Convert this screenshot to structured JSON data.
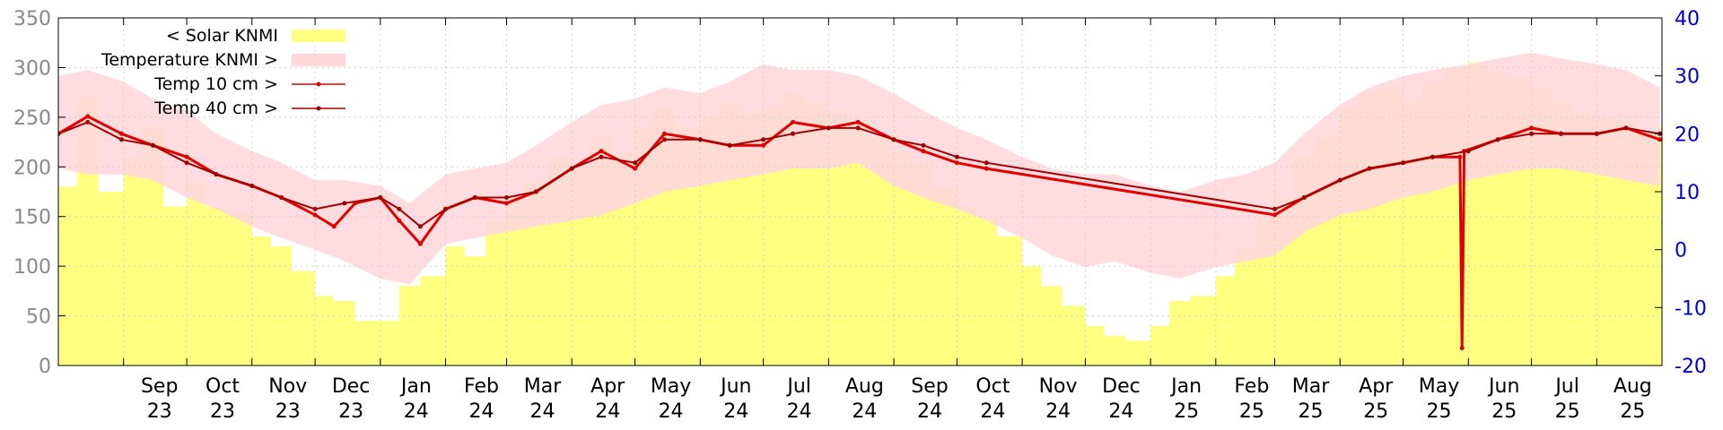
{
  "chart_data": {
    "type": "line",
    "title": "",
    "x_range": [
      "2023-08-01",
      "2025-09-01"
    ],
    "x_ticks": [
      {
        "date": "2023-09-01",
        "month": "Sep",
        "year": "23"
      },
      {
        "date": "2023-10-01",
        "month": "Oct",
        "year": "23"
      },
      {
        "date": "2023-11-01",
        "month": "Nov",
        "year": "23"
      },
      {
        "date": "2023-12-01",
        "month": "Dec",
        "year": "23"
      },
      {
        "date": "2024-01-01",
        "month": "Jan",
        "year": "24"
      },
      {
        "date": "2024-02-01",
        "month": "Feb",
        "year": "24"
      },
      {
        "date": "2024-03-01",
        "month": "Mar",
        "year": "24"
      },
      {
        "date": "2024-04-01",
        "month": "Apr",
        "year": "24"
      },
      {
        "date": "2024-05-01",
        "month": "May",
        "year": "24"
      },
      {
        "date": "2024-06-01",
        "month": "Jun",
        "year": "24"
      },
      {
        "date": "2024-07-01",
        "month": "Jul",
        "year": "24"
      },
      {
        "date": "2024-08-01",
        "month": "Aug",
        "year": "24"
      },
      {
        "date": "2024-09-01",
        "month": "Sep",
        "year": "24"
      },
      {
        "date": "2024-10-01",
        "month": "Oct",
        "year": "24"
      },
      {
        "date": "2024-11-01",
        "month": "Nov",
        "year": "24"
      },
      {
        "date": "2024-12-01",
        "month": "Dec",
        "year": "24"
      },
      {
        "date": "2025-01-01",
        "month": "Jan",
        "year": "25"
      },
      {
        "date": "2025-02-01",
        "month": "Feb",
        "year": "25"
      },
      {
        "date": "2025-03-01",
        "month": "Mar",
        "year": "25"
      },
      {
        "date": "2025-04-01",
        "month": "Apr",
        "year": "25"
      },
      {
        "date": "2025-05-01",
        "month": "May",
        "year": "25"
      },
      {
        "date": "2025-06-01",
        "month": "Jun",
        "year": "25"
      },
      {
        "date": "2025-07-01",
        "month": "Jul",
        "year": "25"
      },
      {
        "date": "2025-08-01",
        "month": "Aug",
        "year": "25"
      }
    ],
    "y_left": {
      "min": 0,
      "max": 350,
      "ticks": [
        0,
        50,
        100,
        150,
        200,
        250,
        300,
        350
      ]
    },
    "y_right": {
      "min": -20,
      "max": 40,
      "ticks": [
        -20,
        -10,
        0,
        10,
        20,
        30,
        40
      ]
    },
    "grid": true,
    "legend_position": "top-left",
    "series": [
      {
        "name": "< Solar KNMI",
        "axis": "left",
        "style": "area",
        "color": "#ffff80",
        "points": [
          [
            "2023-08-01",
            180
          ],
          [
            "2023-08-10",
            270
          ],
          [
            "2023-08-20",
            175
          ],
          [
            "2023-09-01",
            210
          ],
          [
            "2023-09-10",
            240
          ],
          [
            "2023-09-20",
            160
          ],
          [
            "2023-10-01",
            185
          ],
          [
            "2023-10-10",
            160
          ],
          [
            "2023-10-20",
            155
          ],
          [
            "2023-11-01",
            130
          ],
          [
            "2023-11-10",
            120
          ],
          [
            "2023-11-20",
            95
          ],
          [
            "2023-12-01",
            70
          ],
          [
            "2023-12-10",
            65
          ],
          [
            "2023-12-20",
            45
          ],
          [
            "2024-01-01",
            45
          ],
          [
            "2024-01-10",
            80
          ],
          [
            "2024-01-20",
            90
          ],
          [
            "2024-02-01",
            120
          ],
          [
            "2024-02-10",
            110
          ],
          [
            "2024-02-20",
            145
          ],
          [
            "2024-03-01",
            170
          ],
          [
            "2024-03-10",
            185
          ],
          [
            "2024-03-20",
            210
          ],
          [
            "2024-04-01",
            200
          ],
          [
            "2024-04-10",
            230
          ],
          [
            "2024-04-20",
            215
          ],
          [
            "2024-05-01",
            240
          ],
          [
            "2024-05-10",
            260
          ],
          [
            "2024-05-20",
            240
          ],
          [
            "2024-06-01",
            250
          ],
          [
            "2024-06-10",
            265
          ],
          [
            "2024-06-20",
            255
          ],
          [
            "2024-07-01",
            260
          ],
          [
            "2024-07-10",
            275
          ],
          [
            "2024-07-20",
            265
          ],
          [
            "2024-08-01",
            255
          ],
          [
            "2024-08-10",
            245
          ],
          [
            "2024-08-20",
            230
          ],
          [
            "2024-09-01",
            215
          ],
          [
            "2024-09-10",
            205
          ],
          [
            "2024-09-20",
            180
          ],
          [
            "2024-10-01",
            160
          ],
          [
            "2024-10-10",
            150
          ],
          [
            "2024-10-20",
            130
          ],
          [
            "2024-11-01",
            100
          ],
          [
            "2024-11-10",
            80
          ],
          [
            "2024-11-20",
            60
          ],
          [
            "2024-12-01",
            40
          ],
          [
            "2024-12-10",
            30
          ],
          [
            "2024-12-20",
            25
          ],
          [
            "2025-01-01",
            40
          ],
          [
            "2025-01-10",
            65
          ],
          [
            "2025-01-20",
            70
          ],
          [
            "2025-02-01",
            90
          ],
          [
            "2025-02-10",
            120
          ],
          [
            "2025-02-20",
            150
          ],
          [
            "2025-03-01",
            170
          ],
          [
            "2025-03-10",
            210
          ],
          [
            "2025-03-20",
            230
          ],
          [
            "2025-04-01",
            260
          ],
          [
            "2025-04-10",
            275
          ],
          [
            "2025-04-20",
            280
          ],
          [
            "2025-05-01",
            265
          ],
          [
            "2025-05-10",
            285
          ],
          [
            "2025-05-20",
            300
          ],
          [
            "2025-06-01",
            305
          ],
          [
            "2025-06-10",
            295
          ],
          [
            "2025-06-20",
            290
          ],
          [
            "2025-07-01",
            280
          ],
          [
            "2025-07-10",
            265
          ],
          [
            "2025-07-20",
            255
          ],
          [
            "2025-08-01",
            250
          ],
          [
            "2025-08-10",
            245
          ],
          [
            "2025-08-20",
            235
          ],
          [
            "2025-08-31",
            240
          ]
        ]
      },
      {
        "name": "Temperature KNMI >",
        "axis": "right",
        "style": "band",
        "color": "#ffd8dc",
        "points": [
          [
            "2023-08-01",
            14,
            30
          ],
          [
            "2023-08-15",
            13,
            31
          ],
          [
            "2023-09-01",
            13,
            29
          ],
          [
            "2023-09-15",
            12,
            26
          ],
          [
            "2023-10-01",
            9,
            24
          ],
          [
            "2023-10-15",
            7,
            20
          ],
          [
            "2023-11-01",
            4,
            17
          ],
          [
            "2023-11-15",
            2,
            15
          ],
          [
            "2023-12-01",
            0,
            12
          ],
          [
            "2023-12-15",
            -2,
            12
          ],
          [
            "2024-01-01",
            -5,
            11
          ],
          [
            "2024-01-15",
            -6,
            8
          ],
          [
            "2024-02-01",
            1,
            13
          ],
          [
            "2024-02-15",
            2,
            14
          ],
          [
            "2024-03-01",
            3,
            15
          ],
          [
            "2024-03-15",
            4,
            18
          ],
          [
            "2024-04-01",
            5,
            22
          ],
          [
            "2024-04-15",
            6,
            25
          ],
          [
            "2024-05-01",
            8,
            26
          ],
          [
            "2024-05-15",
            10,
            28
          ],
          [
            "2024-06-01",
            11,
            27
          ],
          [
            "2024-06-15",
            12,
            29
          ],
          [
            "2024-07-01",
            13,
            32
          ],
          [
            "2024-07-15",
            14,
            31
          ],
          [
            "2024-08-01",
            14,
            31
          ],
          [
            "2024-08-15",
            15,
            30
          ],
          [
            "2024-09-01",
            11,
            27
          ],
          [
            "2024-09-15",
            9,
            24
          ],
          [
            "2024-10-01",
            7,
            21
          ],
          [
            "2024-10-15",
            5,
            19
          ],
          [
            "2024-11-01",
            2,
            16
          ],
          [
            "2024-11-15",
            -1,
            14
          ],
          [
            "2024-12-01",
            -3,
            13
          ],
          [
            "2024-12-15",
            -2,
            13
          ],
          [
            "2025-01-01",
            -4,
            11
          ],
          [
            "2025-01-15",
            -5,
            10
          ],
          [
            "2025-02-01",
            -3,
            12
          ],
          [
            "2025-02-15",
            -2,
            13
          ],
          [
            "2025-03-01",
            -1,
            15
          ],
          [
            "2025-03-15",
            3,
            20
          ],
          [
            "2025-04-01",
            6,
            25
          ],
          [
            "2025-04-15",
            7,
            28
          ],
          [
            "2025-05-01",
            9,
            30
          ],
          [
            "2025-05-15",
            10,
            31
          ],
          [
            "2025-06-01",
            12,
            32
          ],
          [
            "2025-06-15",
            13,
            33
          ],
          [
            "2025-07-01",
            14,
            34
          ],
          [
            "2025-07-15",
            14,
            33
          ],
          [
            "2025-08-01",
            13,
            32
          ],
          [
            "2025-08-15",
            12,
            31
          ],
          [
            "2025-08-31",
            11,
            28
          ]
        ]
      },
      {
        "name": "Temp 10 cm >",
        "axis": "right",
        "style": "line",
        "color": "#e00000",
        "points": [
          [
            "2023-08-01",
            20
          ],
          [
            "2023-08-15",
            23
          ],
          [
            "2023-08-31",
            20
          ],
          [
            "2023-09-15",
            18
          ],
          [
            "2023-10-01",
            16
          ],
          [
            "2023-10-15",
            13
          ],
          [
            "2023-11-01",
            11
          ],
          [
            "2023-11-15",
            9
          ],
          [
            "2023-12-01",
            6
          ],
          [
            "2023-12-10",
            4
          ],
          [
            "2023-12-20",
            8
          ],
          [
            "2024-01-01",
            9
          ],
          [
            "2024-01-10",
            5
          ],
          [
            "2024-01-20",
            1
          ],
          [
            "2024-02-01",
            7
          ],
          [
            "2024-02-15",
            9
          ],
          [
            "2024-03-01",
            8
          ],
          [
            "2024-03-15",
            10
          ],
          [
            "2024-04-01",
            14
          ],
          [
            "2024-04-15",
            17
          ],
          [
            "2024-05-01",
            14
          ],
          [
            "2024-05-15",
            20
          ],
          [
            "2024-06-01",
            19
          ],
          [
            "2024-06-15",
            18
          ],
          [
            "2024-07-01",
            18
          ],
          [
            "2024-07-15",
            22
          ],
          [
            "2024-08-01",
            21
          ],
          [
            "2024-08-15",
            22
          ],
          [
            "2024-09-01",
            19
          ],
          [
            "2024-09-15",
            17
          ],
          [
            "2024-10-01",
            15
          ],
          [
            "2024-10-15",
            14
          ],
          [
            "2025-03-01",
            6
          ],
          [
            "2025-03-15",
            9
          ],
          [
            "2025-04-01",
            12
          ],
          [
            "2025-04-15",
            14
          ],
          [
            "2025-05-01",
            15
          ],
          [
            "2025-05-15",
            16
          ],
          [
            "2025-05-28",
            16
          ],
          [
            "2025-05-29",
            -17
          ],
          [
            "2025-05-30",
            17
          ],
          [
            "2025-06-15",
            19
          ],
          [
            "2025-07-01",
            21
          ],
          [
            "2025-07-15",
            20
          ],
          [
            "2025-08-01",
            20
          ],
          [
            "2025-08-15",
            21
          ],
          [
            "2025-08-31",
            19
          ]
        ]
      },
      {
        "name": "Temp 40 cm >",
        "axis": "right",
        "style": "line",
        "color": "#a00000",
        "points": [
          [
            "2023-08-01",
            20
          ],
          [
            "2023-08-15",
            22
          ],
          [
            "2023-08-31",
            19
          ],
          [
            "2023-09-15",
            18
          ],
          [
            "2023-10-01",
            15
          ],
          [
            "2023-10-15",
            13
          ],
          [
            "2023-11-01",
            11
          ],
          [
            "2023-11-15",
            9
          ],
          [
            "2023-12-01",
            7
          ],
          [
            "2023-12-15",
            8
          ],
          [
            "2024-01-01",
            9
          ],
          [
            "2024-01-10",
            7
          ],
          [
            "2024-01-20",
            4
          ],
          [
            "2024-02-01",
            7
          ],
          [
            "2024-02-15",
            9
          ],
          [
            "2024-03-01",
            9
          ],
          [
            "2024-03-15",
            10
          ],
          [
            "2024-04-01",
            14
          ],
          [
            "2024-04-15",
            16
          ],
          [
            "2024-05-01",
            15
          ],
          [
            "2024-05-15",
            19
          ],
          [
            "2024-06-01",
            19
          ],
          [
            "2024-06-15",
            18
          ],
          [
            "2024-07-01",
            19
          ],
          [
            "2024-07-15",
            20
          ],
          [
            "2024-08-01",
            21
          ],
          [
            "2024-08-15",
            21
          ],
          [
            "2024-09-01",
            19
          ],
          [
            "2024-09-15",
            18
          ],
          [
            "2024-10-01",
            16
          ],
          [
            "2024-10-15",
            15
          ],
          [
            "2025-03-01",
            7
          ],
          [
            "2025-03-15",
            9
          ],
          [
            "2025-04-01",
            12
          ],
          [
            "2025-04-15",
            14
          ],
          [
            "2025-05-01",
            15
          ],
          [
            "2025-05-15",
            16
          ],
          [
            "2025-06-01",
            17
          ],
          [
            "2025-06-15",
            19
          ],
          [
            "2025-07-01",
            20
          ],
          [
            "2025-07-15",
            20
          ],
          [
            "2025-08-01",
            20
          ],
          [
            "2025-08-15",
            21
          ],
          [
            "2025-08-31",
            20
          ]
        ]
      }
    ]
  }
}
